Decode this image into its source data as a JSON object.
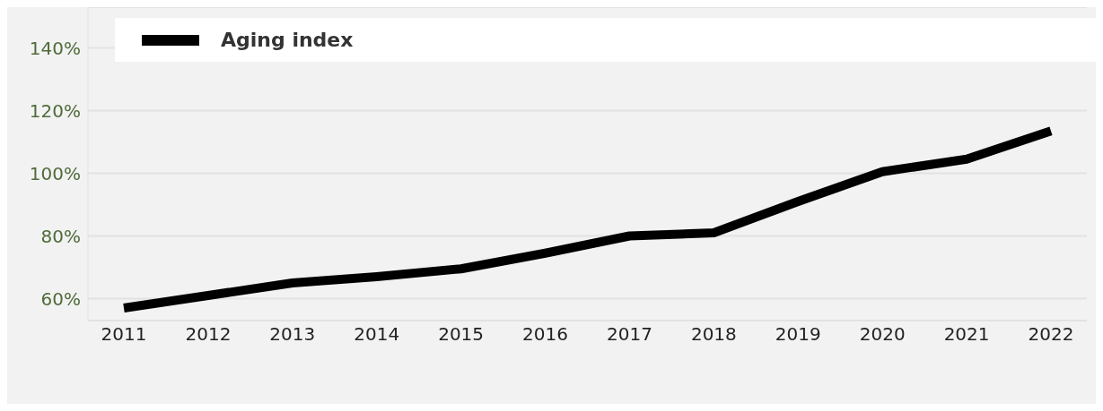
{
  "chart_data": {
    "type": "line",
    "categories": [
      "2011",
      "2012",
      "2013",
      "2014",
      "2015",
      "2016",
      "2017",
      "2018",
      "2019",
      "2020",
      "2021",
      "2022"
    ],
    "series": [
      {
        "name": "Aging index",
        "color": "#000000",
        "values": [
          57,
          61,
          65,
          67,
          69.5,
          74.5,
          80,
          81,
          91,
          100.5,
          104.5,
          113.5
        ]
      }
    ],
    "ylim": [
      53,
      153
    ],
    "yticks": [
      {
        "value": 60,
        "label": "60%"
      },
      {
        "value": 80,
        "label": "80%"
      },
      {
        "value": 100,
        "label": "100%"
      },
      {
        "value": 120,
        "label": "120%"
      },
      {
        "value": 140,
        "label": "140%"
      }
    ],
    "grid": "y",
    "legend": "top left",
    "marker": "none",
    "line_style": "solid"
  }
}
